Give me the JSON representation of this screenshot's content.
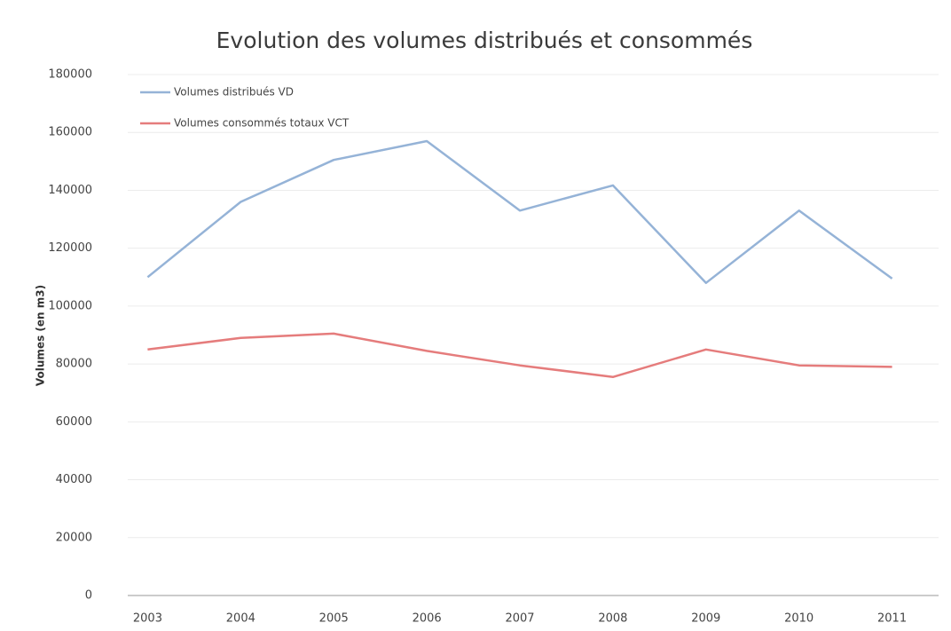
{
  "chart_data": {
    "type": "line",
    "title": "Evolution des volumes distribués et consommés",
    "y_label": "Volumes (en m3)",
    "categories": [
      "2003",
      "2004",
      "2005",
      "2006",
      "2007",
      "2008",
      "2009",
      "2010",
      "2011"
    ],
    "series": [
      {
        "name": "Volumes distribués VD",
        "color": "#95b3d7",
        "values": [
          110000,
          136000,
          150500,
          157000,
          133000,
          141700,
          108000,
          133000,
          109500
        ]
      },
      {
        "name": "Volumes consommés totaux VCT",
        "color": "#e57c7c",
        "values": [
          85000,
          89000,
          90500,
          84500,
          79500,
          75500,
          85000,
          79500,
          79000
        ]
      }
    ],
    "ylim": [
      0,
      180000
    ],
    "yticks": [
      0,
      20000,
      40000,
      60000,
      80000,
      100000,
      120000,
      140000,
      160000,
      180000
    ],
    "grid": true,
    "legend": "top-left"
  }
}
